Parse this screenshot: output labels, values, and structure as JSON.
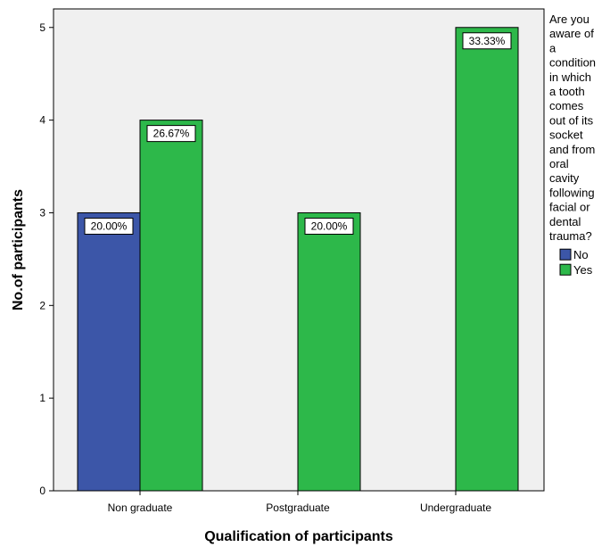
{
  "chart_data": {
    "type": "bar",
    "categories": [
      "Non graduate",
      "Postgraduate",
      "Undergraduate"
    ],
    "series": [
      {
        "name": "No",
        "values": [
          3,
          0,
          0
        ],
        "labels": [
          "20.00%",
          "",
          ""
        ],
        "color": "#3c56a8"
      },
      {
        "name": "Yes",
        "values": [
          4,
          3,
          5
        ],
        "labels": [
          "26.67%",
          "20.00%",
          "33.33%"
        ],
        "color": "#2db84a"
      }
    ],
    "xlabel": "Qualification of participants",
    "ylabel": "No.of participants",
    "ylim": [
      0,
      5.2
    ],
    "yticks": [
      0,
      1,
      2,
      3,
      4,
      5
    ],
    "legend": {
      "title_lines": [
        "Are you",
        "aware of",
        "a",
        "condition",
        "in which",
        "a tooth",
        "comes",
        "out of its",
        "socket",
        "and from",
        "oral",
        "cavity",
        "following",
        "facial or",
        "dental",
        "trauma?"
      ],
      "position": "right"
    },
    "plot_background": "#f0f0f0",
    "grid": false
  }
}
